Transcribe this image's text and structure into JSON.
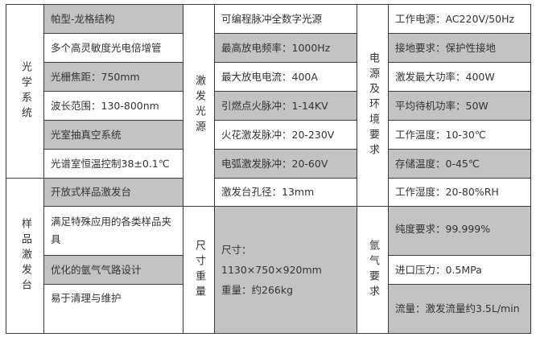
{
  "sections": {
    "optical": "光学系统",
    "sample": "样品激发台",
    "source": "激发光源",
    "size": "尺寸重量",
    "power": "电源及环境要求",
    "argon": "氩气要求"
  },
  "optical_items": [
    "帕型-龙格结构",
    "多个高灵敏度光电倍增管",
    "光栅焦距：750mm",
    "波长范围：130-800nm",
    "光室抽真空系统",
    "光谱室恒温控制38±0.1℃"
  ],
  "sample_items": [
    "开放式样品激发台",
    "满足特殊应用的各类样品夹具",
    "优化的氩气气路设计",
    "易于清理与维护"
  ],
  "source_items": [
    "可编程脉冲全数字光源",
    "最高放电频率：1000Hz",
    "最大放电电流：400A",
    "引燃点火脉冲：1-14KV",
    "火花激发脉冲：20-230V",
    "电弧激发脉冲：20-60V",
    "激发台孔径：13mm"
  ],
  "size_items": [
    "尺寸：",
    "1130×750×920mm",
    "重量：约266kg"
  ],
  "power_items": [
    "工作电源：AC220V/50Hz",
    "接地要求：保护性接地",
    "激发最大功率：400W",
    "平均待机功率：50W",
    "工作温度：10-30℃",
    "存储温度：0-45℃",
    "工作湿度：20-80%RH"
  ],
  "argon_items": [
    "纯度要求：99.999%",
    "进口压力：0.5MPa",
    "流量：激发流量约3.5L/min"
  ],
  "colors": {
    "shade": "#c3c3c3",
    "border": "#3a3a3a",
    "text": "#333333"
  }
}
